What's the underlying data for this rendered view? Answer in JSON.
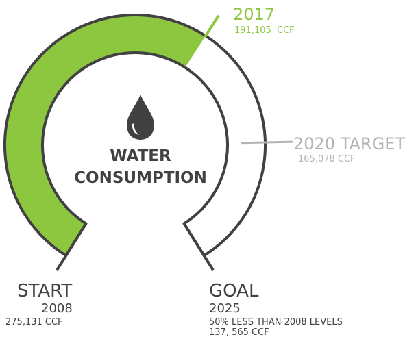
{
  "chart_data": {
    "type": "gauge",
    "title": "WATER CONSUMPTION",
    "start": {
      "label": "START",
      "year": "2008",
      "value": 275131,
      "value_label": "275,131 CCF"
    },
    "current": {
      "label": "2017",
      "value": 191105,
      "value_label": "191,105  CCF",
      "color": "#8dc63f"
    },
    "target": {
      "label": "2020 TARGET",
      "value": 165078,
      "value_label": "165,078 CCF",
      "color": "#b3b3b3"
    },
    "goal": {
      "label": "GOAL",
      "year": "2025",
      "note": "50% LESS THAN 2008 LEVELS",
      "value": 137565,
      "value_label": "137, 565 CCF"
    }
  }
}
